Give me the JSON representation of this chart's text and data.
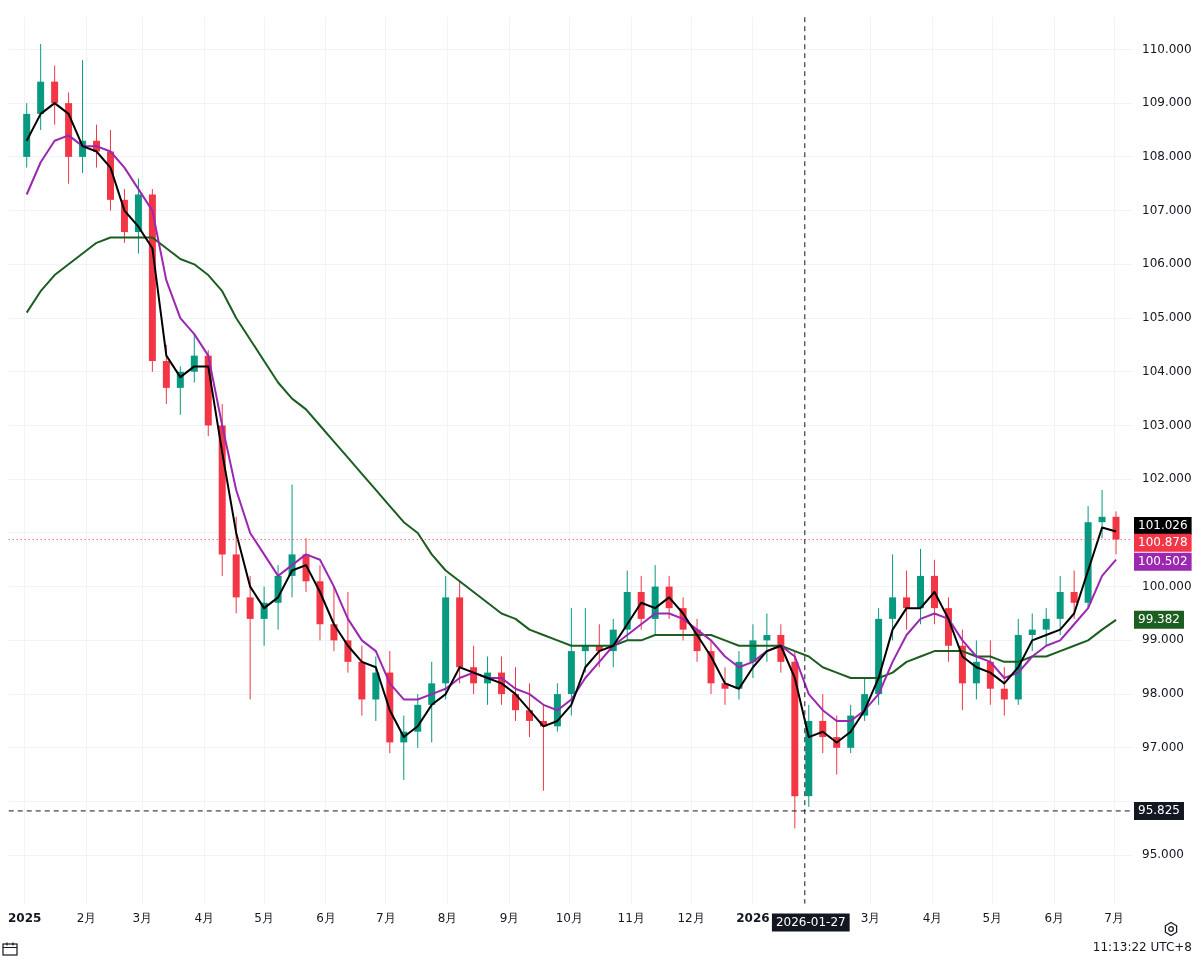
{
  "chart_data": {
    "type": "candlestick",
    "x": [
      "2025-01-02",
      "2025-01-09",
      "2025-01-16",
      "2025-01-23",
      "2025-01-30",
      "2025-02-06",
      "2025-02-13",
      "2025-02-20",
      "2025-02-27",
      "2025-03-06",
      "2025-03-13",
      "2025-03-20",
      "2025-03-27",
      "2025-04-03",
      "2025-04-10",
      "2025-04-17",
      "2025-04-24",
      "2025-05-01",
      "2025-05-08",
      "2025-05-15",
      "2025-05-22",
      "2025-05-29",
      "2025-06-05",
      "2025-06-12",
      "2025-06-19",
      "2025-06-26",
      "2025-07-03",
      "2025-07-10",
      "2025-07-17",
      "2025-07-24",
      "2025-07-31",
      "2025-08-07",
      "2025-08-14",
      "2025-08-21",
      "2025-08-28",
      "2025-09-04",
      "2025-09-11",
      "2025-09-18",
      "2025-09-25",
      "2025-10-02",
      "2025-10-09",
      "2025-10-16",
      "2025-10-23",
      "2025-10-30",
      "2025-11-06",
      "2025-11-13",
      "2025-11-20",
      "2025-11-27",
      "2025-12-04",
      "2025-12-11",
      "2025-12-18",
      "2025-12-25",
      "2026-01-01",
      "2026-01-08",
      "2026-01-15",
      "2026-01-22",
      "2026-01-29",
      "2026-02-05",
      "2026-02-12",
      "2026-02-19",
      "2026-02-26",
      "2026-03-05",
      "2026-03-12",
      "2026-03-19",
      "2026-03-26",
      "2026-04-02",
      "2026-04-09",
      "2026-04-16",
      "2026-04-23",
      "2026-04-30",
      "2026-05-07",
      "2026-05-14",
      "2026-05-21",
      "2026-05-28",
      "2026-06-04",
      "2026-06-11",
      "2026-06-18",
      "2026-06-25",
      "2026-07-02"
    ],
    "ohlc": [
      [
        108.0,
        109.0,
        107.8,
        108.8
      ],
      [
        108.8,
        110.1,
        108.5,
        109.4
      ],
      [
        109.4,
        109.7,
        108.6,
        109.0
      ],
      [
        109.0,
        109.2,
        107.5,
        108.0
      ],
      [
        108.0,
        109.8,
        107.7,
        108.3
      ],
      [
        108.3,
        108.6,
        107.8,
        108.1
      ],
      [
        108.1,
        108.5,
        107.0,
        107.2
      ],
      [
        107.2,
        107.4,
        106.4,
        106.6
      ],
      [
        106.6,
        107.6,
        106.2,
        107.3
      ],
      [
        107.3,
        107.4,
        104.0,
        104.2
      ],
      [
        104.2,
        104.5,
        103.4,
        103.7
      ],
      [
        103.7,
        104.1,
        103.2,
        104.0
      ],
      [
        104.0,
        104.7,
        103.8,
        104.3
      ],
      [
        104.3,
        104.4,
        102.8,
        103.0
      ],
      [
        103.0,
        103.4,
        100.2,
        100.6
      ],
      [
        100.6,
        101.3,
        99.5,
        99.8
      ],
      [
        99.8,
        100.2,
        97.9,
        99.4
      ],
      [
        99.4,
        100.0,
        98.9,
        99.7
      ],
      [
        99.7,
        100.4,
        99.2,
        100.2
      ],
      [
        100.2,
        101.9,
        99.8,
        100.6
      ],
      [
        100.6,
        100.9,
        99.9,
        100.1
      ],
      [
        100.1,
        100.4,
        99.0,
        99.3
      ],
      [
        99.3,
        100.0,
        98.8,
        99.0
      ],
      [
        99.0,
        99.9,
        98.4,
        98.6
      ],
      [
        98.6,
        98.9,
        97.6,
        97.9
      ],
      [
        97.9,
        98.7,
        97.5,
        98.4
      ],
      [
        98.4,
        98.8,
        96.9,
        97.1
      ],
      [
        97.1,
        97.6,
        96.4,
        97.3
      ],
      [
        97.3,
        98.0,
        97.0,
        97.8
      ],
      [
        97.8,
        98.6,
        97.1,
        98.2
      ],
      [
        98.2,
        100.2,
        97.9,
        99.8
      ],
      [
        99.8,
        100.1,
        98.2,
        98.5
      ],
      [
        98.5,
        98.9,
        98.0,
        98.2
      ],
      [
        98.2,
        98.7,
        97.8,
        98.4
      ],
      [
        98.4,
        98.7,
        97.8,
        98.0
      ],
      [
        98.0,
        98.5,
        97.5,
        97.7
      ],
      [
        97.7,
        98.2,
        97.2,
        97.5
      ],
      [
        97.5,
        97.8,
        96.2,
        97.4
      ],
      [
        97.4,
        98.2,
        97.3,
        98.0
      ],
      [
        98.0,
        99.6,
        97.6,
        98.8
      ],
      [
        98.8,
        99.6,
        98.4,
        98.9
      ],
      [
        98.9,
        99.3,
        98.5,
        98.8
      ],
      [
        98.8,
        99.4,
        98.5,
        99.2
      ],
      [
        99.2,
        100.3,
        99.0,
        99.9
      ],
      [
        99.9,
        100.2,
        99.2,
        99.4
      ],
      [
        99.4,
        100.4,
        99.1,
        100.0
      ],
      [
        100.0,
        100.2,
        99.4,
        99.6
      ],
      [
        99.6,
        99.8,
        99.0,
        99.2
      ],
      [
        99.2,
        99.4,
        98.6,
        98.8
      ],
      [
        98.8,
        99.0,
        98.0,
        98.2
      ],
      [
        98.2,
        98.5,
        97.8,
        98.1
      ],
      [
        98.1,
        98.8,
        97.9,
        98.6
      ],
      [
        98.6,
        99.3,
        98.3,
        99.0
      ],
      [
        99.0,
        99.5,
        98.6,
        99.1
      ],
      [
        99.1,
        99.3,
        98.4,
        98.6
      ],
      [
        98.6,
        98.8,
        95.5,
        96.1
      ],
      [
        96.1,
        97.8,
        95.9,
        97.5
      ],
      [
        97.5,
        98.0,
        96.9,
        97.2
      ],
      [
        97.2,
        97.6,
        96.5,
        97.0
      ],
      [
        97.0,
        97.8,
        96.9,
        97.6
      ],
      [
        97.6,
        98.3,
        97.5,
        98.0
      ],
      [
        98.0,
        99.6,
        97.8,
        99.4
      ],
      [
        99.4,
        100.6,
        99.0,
        99.8
      ],
      [
        99.8,
        100.3,
        99.2,
        99.6
      ],
      [
        99.6,
        100.7,
        99.3,
        100.2
      ],
      [
        100.2,
        100.5,
        99.3,
        99.6
      ],
      [
        99.6,
        99.8,
        98.6,
        98.9
      ],
      [
        98.9,
        99.2,
        97.7,
        98.2
      ],
      [
        98.2,
        99.0,
        97.9,
        98.6
      ],
      [
        98.6,
        99.0,
        97.8,
        98.1
      ],
      [
        98.1,
        98.5,
        97.6,
        97.9
      ],
      [
        97.9,
        99.4,
        97.8,
        99.1
      ],
      [
        99.1,
        99.5,
        98.8,
        99.2
      ],
      [
        99.2,
        99.6,
        98.9,
        99.4
      ],
      [
        99.4,
        100.2,
        99.1,
        99.9
      ],
      [
        99.9,
        100.3,
        99.4,
        99.7
      ],
      [
        99.7,
        101.5,
        99.6,
        101.2
      ],
      [
        101.2,
        101.8,
        100.9,
        101.3
      ],
      [
        101.3,
        101.4,
        100.6,
        100.878
      ]
    ],
    "series": [
      {
        "type": "line",
        "color": "#000000",
        "values": [
          108.3,
          108.8,
          109.0,
          108.8,
          108.2,
          108.1,
          107.8,
          107.0,
          106.7,
          106.3,
          104.3,
          103.9,
          104.1,
          104.1,
          102.5,
          101.0,
          100.0,
          99.6,
          99.8,
          100.3,
          100.4,
          99.9,
          99.3,
          98.9,
          98.6,
          98.5,
          97.7,
          97.2,
          97.4,
          97.8,
          98.0,
          98.5,
          98.4,
          98.3,
          98.2,
          98.0,
          97.7,
          97.4,
          97.5,
          97.8,
          98.5,
          98.8,
          98.9,
          99.3,
          99.7,
          99.6,
          99.8,
          99.5,
          99.1,
          98.7,
          98.2,
          98.1,
          98.5,
          98.8,
          98.9,
          98.3,
          97.2,
          97.3,
          97.1,
          97.3,
          97.7,
          98.3,
          99.2,
          99.6,
          99.6,
          99.9,
          99.4,
          98.7,
          98.5,
          98.4,
          98.2,
          98.5,
          99.0,
          99.1,
          99.2,
          99.5,
          100.3,
          101.1,
          101.026
        ],
        "value_labels": [
          null,
          null,
          null,
          null,
          null,
          null,
          null,
          null,
          null,
          null,
          null,
          null,
          null,
          null,
          null,
          null,
          null,
          null,
          null,
          null,
          null,
          null,
          null,
          null,
          null,
          null,
          null,
          null,
          null,
          null,
          null,
          null,
          null,
          null,
          null,
          null,
          null,
          null,
          null,
          null,
          null,
          null,
          null,
          null,
          null,
          null,
          null,
          null,
          null,
          null,
          null,
          null,
          null,
          null,
          null,
          null,
          null,
          null,
          null,
          null,
          null,
          null,
          null,
          null,
          null,
          null,
          null,
          null,
          null,
          null,
          null,
          null,
          null,
          null,
          null,
          null,
          null,
          null,
          "101.026"
        ]
      },
      {
        "type": "line",
        "color": "#9c27b0",
        "values": [
          107.3,
          107.9,
          108.3,
          108.4,
          108.2,
          108.2,
          108.1,
          107.8,
          107.4,
          107.0,
          105.7,
          105.0,
          104.7,
          104.3,
          103.0,
          101.8,
          101.0,
          100.6,
          100.2,
          100.4,
          100.6,
          100.5,
          100.0,
          99.4,
          99.0,
          98.8,
          98.2,
          97.9,
          97.9,
          98.0,
          98.1,
          98.3,
          98.4,
          98.3,
          98.3,
          98.1,
          98.0,
          97.8,
          97.7,
          97.9,
          98.3,
          98.6,
          98.9,
          99.1,
          99.3,
          99.5,
          99.5,
          99.4,
          99.2,
          99.0,
          98.7,
          98.5,
          98.6,
          98.8,
          98.9,
          98.7,
          98.0,
          97.7,
          97.5,
          97.5,
          97.7,
          98.0,
          98.6,
          99.1,
          99.4,
          99.5,
          99.4,
          99.0,
          98.7,
          98.6,
          98.3,
          98.4,
          98.7,
          98.9,
          99.0,
          99.3,
          99.6,
          100.2,
          100.502
        ],
        "value_labels": [
          null,
          null,
          null,
          null,
          null,
          null,
          null,
          null,
          null,
          null,
          null,
          null,
          null,
          null,
          null,
          null,
          null,
          null,
          null,
          null,
          null,
          null,
          null,
          null,
          null,
          null,
          null,
          null,
          null,
          null,
          null,
          null,
          null,
          null,
          null,
          null,
          null,
          null,
          null,
          null,
          null,
          null,
          null,
          null,
          null,
          null,
          null,
          null,
          null,
          null,
          null,
          null,
          null,
          null,
          null,
          null,
          null,
          null,
          null,
          null,
          null,
          null,
          null,
          null,
          null,
          null,
          null,
          null,
          null,
          null,
          null,
          null,
          null,
          null,
          null,
          null,
          null,
          null,
          "100.502"
        ]
      },
      {
        "type": "line",
        "color": "#1b5e20",
        "values": [
          105.1,
          105.5,
          105.8,
          106.0,
          106.2,
          106.4,
          106.5,
          106.5,
          106.5,
          106.5,
          106.3,
          106.1,
          106.0,
          105.8,
          105.5,
          105.0,
          104.6,
          104.2,
          103.8,
          103.5,
          103.3,
          103.0,
          102.7,
          102.4,
          102.1,
          101.8,
          101.5,
          101.2,
          101.0,
          100.6,
          100.3,
          100.1,
          99.9,
          99.7,
          99.5,
          99.4,
          99.2,
          99.1,
          99.0,
          98.9,
          98.9,
          98.9,
          98.9,
          99.0,
          99.0,
          99.1,
          99.1,
          99.1,
          99.1,
          99.1,
          99.0,
          98.9,
          98.9,
          98.9,
          98.9,
          98.8,
          98.7,
          98.5,
          98.4,
          98.3,
          98.3,
          98.3,
          98.4,
          98.6,
          98.7,
          98.8,
          98.8,
          98.8,
          98.7,
          98.7,
          98.6,
          98.6,
          98.7,
          98.7,
          98.8,
          98.9,
          99.0,
          99.2,
          99.382
        ],
        "value_labels": [
          null,
          null,
          null,
          null,
          null,
          null,
          null,
          null,
          null,
          null,
          null,
          null,
          null,
          null,
          null,
          null,
          null,
          null,
          null,
          null,
          null,
          null,
          null,
          null,
          null,
          null,
          null,
          null,
          null,
          null,
          null,
          null,
          null,
          null,
          null,
          null,
          null,
          null,
          null,
          null,
          null,
          null,
          null,
          null,
          null,
          null,
          null,
          null,
          null,
          null,
          null,
          null,
          null,
          null,
          null,
          null,
          null,
          null,
          null,
          null,
          null,
          null,
          null,
          null,
          null,
          null,
          null,
          null,
          null,
          null,
          null,
          null,
          null,
          null,
          null,
          null,
          null,
          null,
          "99.382"
        ]
      }
    ],
    "xlim": [
      "2024-12-24",
      "2026-07-10"
    ],
    "xticks": [
      {
        "value": "2025-01-01",
        "label": "2025"
      },
      {
        "value": "2025-02-01",
        "label": "2月"
      },
      {
        "value": "2025-03-01",
        "label": "3月"
      },
      {
        "value": "2025-04-01",
        "label": "4月"
      },
      {
        "value": "2025-05-01",
        "label": "5月"
      },
      {
        "value": "2025-06-01",
        "label": "6月"
      },
      {
        "value": "2025-07-01",
        "label": "7月"
      },
      {
        "value": "2025-08-01",
        "label": "8月"
      },
      {
        "value": "2025-09-01",
        "label": "9月"
      },
      {
        "value": "2025-10-01",
        "label": "10月"
      },
      {
        "value": "2025-11-01",
        "label": "11月"
      },
      {
        "value": "2025-12-01",
        "label": "12月"
      },
      {
        "value": "2026-01-01",
        "label": "2026"
      },
      {
        "value": "2026-03-01",
        "label": "3月"
      },
      {
        "value": "2026-04-01",
        "label": "4月"
      },
      {
        "value": "2026-05-01",
        "label": "5月"
      },
      {
        "value": "2026-06-01",
        "label": "6月"
      },
      {
        "value": "2026-07-01",
        "label": "7月"
      }
    ],
    "ylim": [
      94.1,
      110.6
    ],
    "yticks": [
      {
        "value": 95,
        "label": "95.000"
      },
      {
        "value": 96,
        "label": null
      },
      {
        "value": 97,
        "label": "97.000"
      },
      {
        "value": 98,
        "label": "98.000"
      },
      {
        "value": 99,
        "label": "99.000"
      },
      {
        "value": 100,
        "label": "100.000"
      },
      {
        "value": 101,
        "label": null
      },
      {
        "value": 102,
        "label": "102.000"
      },
      {
        "value": 103,
        "label": "103.000"
      },
      {
        "value": 104,
        "label": "104.000"
      },
      {
        "value": 105,
        "label": "105.000"
      },
      {
        "value": 106,
        "label": "106.000"
      },
      {
        "value": 107,
        "label": "107.000"
      },
      {
        "value": 108,
        "label": "108.000"
      },
      {
        "value": 109,
        "label": "109.000"
      },
      {
        "value": 110,
        "label": "110.000"
      }
    ],
    "grid": true,
    "ref_lines": [
      {
        "axis": "y",
        "value": 100.878,
        "label": "100.878",
        "color": "#f23645",
        "line_style": "dotted"
      },
      {
        "axis": "y",
        "value": 95.825,
        "label": "95.825",
        "color": "#131722",
        "line_style": "dashed"
      },
      {
        "axis": "x",
        "value": "2026-01-27",
        "label": "2026-01-27",
        "color": "#131722",
        "line_style": "dashed"
      }
    ],
    "annotations": [
      "11:13:22 UTC+8"
    ]
  }
}
